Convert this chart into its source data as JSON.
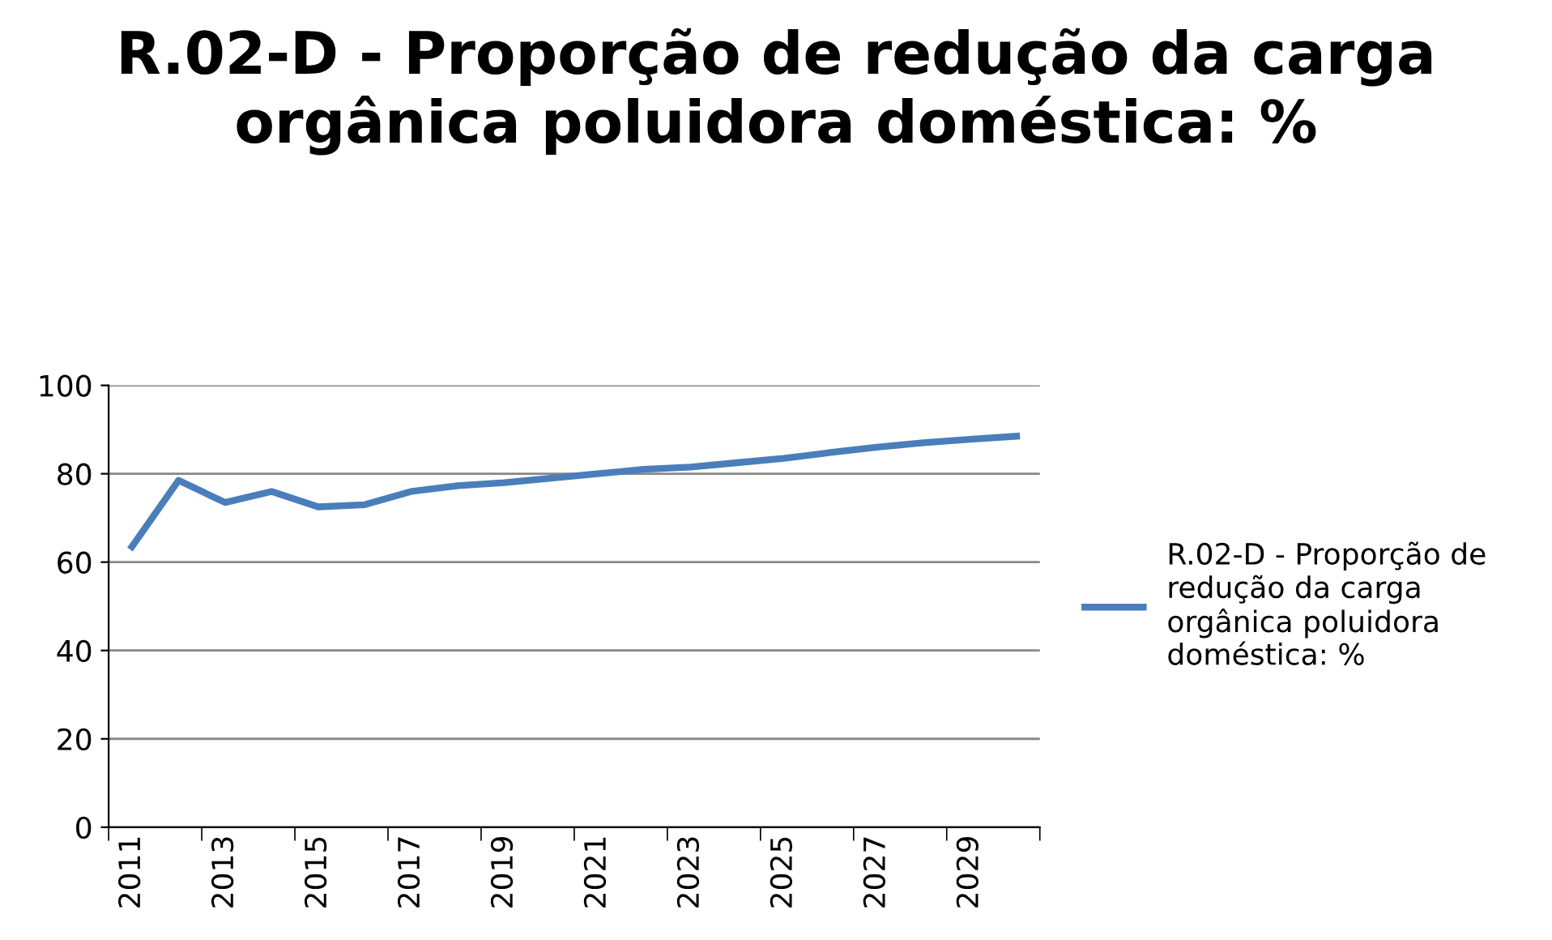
{
  "chart_data": {
    "type": "line",
    "title": "R.02-D - Proporção de redução da carga orgânica poluidora doméstica: %",
    "categories": [
      "2011",
      null,
      "2013",
      null,
      "2015",
      null,
      "2017",
      null,
      "2019",
      null,
      "2021",
      null,
      "2023",
      null,
      "2025",
      null,
      "2027",
      null,
      "2029",
      null
    ],
    "series": [
      {
        "name": "R.02-D - Proporção de redução da carga orgânica poluidora doméstica: %",
        "color": "#4a7ebb",
        "values": [
          63.5,
          78.5,
          73.5,
          76,
          72.5,
          73,
          76,
          77.3,
          78,
          79,
          80,
          81,
          81.5,
          82.5,
          83.5,
          84.8,
          86,
          87,
          87.8,
          88.5
        ]
      }
    ],
    "ylim": [
      0,
      100
    ],
    "yticks": [
      0,
      20,
      40,
      60,
      80,
      100
    ],
    "grid": "y",
    "legend": "right",
    "marker": "none",
    "line_style": "solid"
  }
}
